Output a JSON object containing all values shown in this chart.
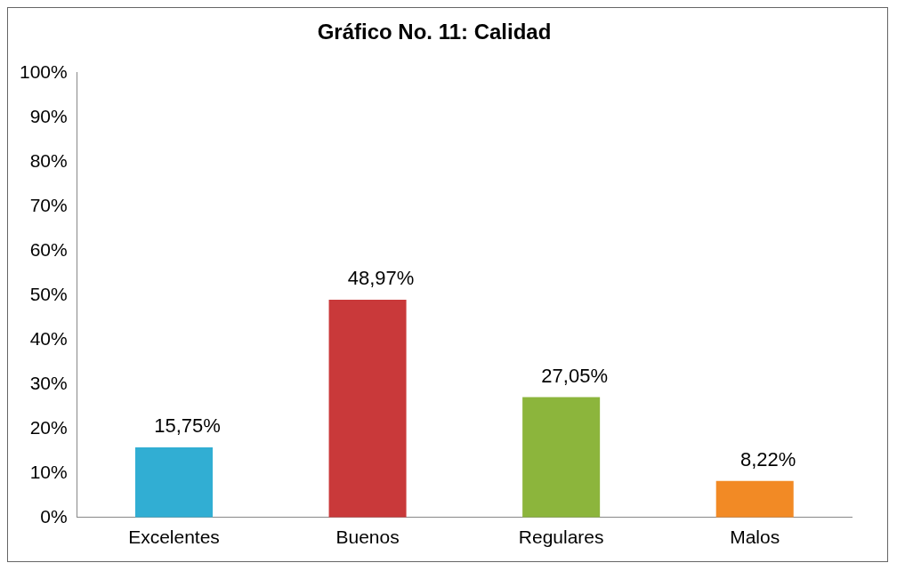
{
  "chart_data": {
    "type": "bar",
    "title": "Gráfico No. 11: Calidad",
    "categories": [
      "Excelentes",
      "Buenos",
      "Regulares",
      "Malos"
    ],
    "values": [
      15.75,
      48.97,
      27.05,
      8.22
    ],
    "colors": [
      "#31aed3",
      "#c9393a",
      "#8cb53c",
      "#f28a25"
    ],
    "value_labels": [
      "15,75%",
      "48,97%",
      "27,05%",
      "8,22%"
    ],
    "ylim": [
      0,
      100
    ],
    "yticks": [
      {
        "value": 0,
        "label": "0%"
      },
      {
        "value": 10,
        "label": "10%"
      },
      {
        "value": 20,
        "label": "20%"
      },
      {
        "value": 30,
        "label": "30%"
      },
      {
        "value": 40,
        "label": "40%"
      },
      {
        "value": 50,
        "label": "50%"
      },
      {
        "value": 60,
        "label": "60%"
      },
      {
        "value": 70,
        "label": "70%"
      },
      {
        "value": 80,
        "label": "80%"
      },
      {
        "value": 90,
        "label": "90%"
      },
      {
        "value": 100,
        "label": "100%"
      }
    ],
    "grid": false,
    "legend": false
  }
}
